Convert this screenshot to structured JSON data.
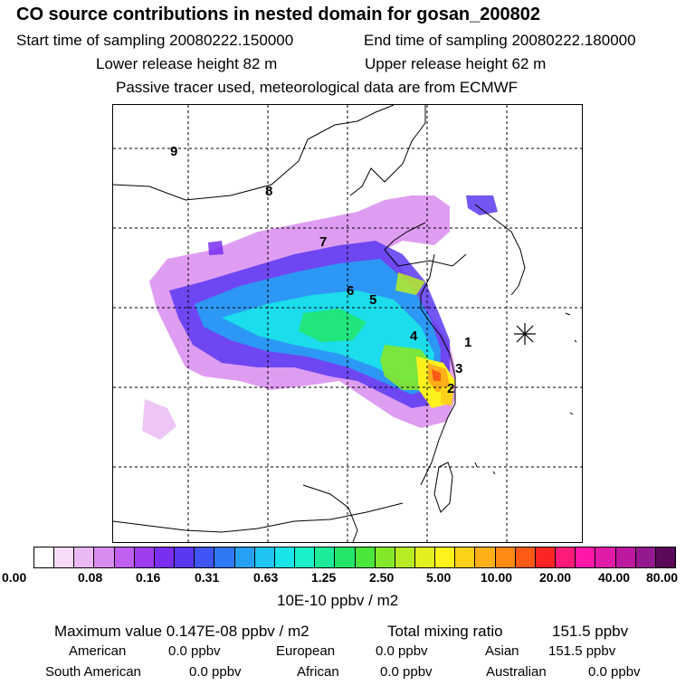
{
  "header": {
    "title": "CO  source contributions in nested domain for gosan_200802",
    "start_label": "Start time of sampling 20080222.150000",
    "end_label": "End time of sampling 20080222.180000",
    "lower_label": "Lower release height   82 m",
    "upper_label": "Upper release height   62 m",
    "info": "Passive tracer used, meteorological data are from ECMWF"
  },
  "map": {
    "region_labels": [
      "1",
      "2",
      "3",
      "4",
      "5",
      "6",
      "7",
      "8",
      "9"
    ],
    "receptor_marker": "gosan-receptor-icon"
  },
  "colorbar": {
    "colors": [
      "#ffffff",
      "#f7dcf7",
      "#eab8f2",
      "#d98cf0",
      "#c15ff0",
      "#a03cf0",
      "#7a2ef0",
      "#5a38f2",
      "#3f55f5",
      "#2f79f7",
      "#26a0f5",
      "#1fc4f2",
      "#19e4ea",
      "#19efc8",
      "#1ceb9a",
      "#22e66a",
      "#4be63c",
      "#84e82a",
      "#b7ec25",
      "#e2f020",
      "#fff21c",
      "#ffd21a",
      "#ffb018",
      "#ff8a16",
      "#ff5a16",
      "#ff2424",
      "#ff1b7a",
      "#ff18a8",
      "#e21aa8",
      "#be18a0",
      "#941890",
      "#5a0a58"
    ],
    "ticks": [
      "0.00",
      "0.08",
      "0.16",
      "0.31",
      "0.63",
      "1.25",
      "2.50",
      "5.00",
      "10.00",
      "20.00",
      "40.00",
      "80.00"
    ],
    "units": "10E-10 ppbv / m2"
  },
  "summary": {
    "max_label": "Maximum value  0.147E-08 ppbv / m2",
    "total_label": "Total mixing ratio",
    "total_value": "151.5 ppbv",
    "american_label": "American",
    "american_value": "0.0 ppbv",
    "european_label": "European",
    "european_value": "0.0 ppbv",
    "asian_label": "Asian",
    "asian_value": "151.5 ppbv",
    "south_american_label": "South American",
    "south_american_value": "0.0 ppbv",
    "african_label": "African",
    "african_value": "0.0 ppbv",
    "australian_label": "Australian",
    "australian_value": "0.0 ppbv"
  }
}
